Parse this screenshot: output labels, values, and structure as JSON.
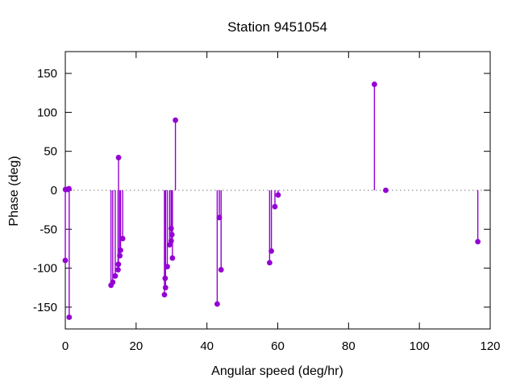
{
  "window": {
    "title": "Station 9451054"
  },
  "chart_data": {
    "type": "scatter",
    "subtype": "stem-impulses-with-points",
    "title": "Station 9451054",
    "xlabel": "Angular speed (deg/hr)",
    "ylabel": "Phase (deg)",
    "xlim": [
      0,
      120
    ],
    "ylim": [
      -178,
      178
    ],
    "xticks": [
      0,
      20,
      40,
      60,
      80,
      100,
      120
    ],
    "yticks": [
      -150,
      -100,
      -50,
      0,
      50,
      100,
      150
    ],
    "baseline": 0,
    "zero_line_visible": true,
    "grid": false,
    "legend": "none",
    "series_name": "phase",
    "series_color": "#9400d3",
    "axis_color": "#000000",
    "zero_line_color": "#777777",
    "background_color": "#ffffff",
    "points": [
      [
        0.04,
        1
      ],
      [
        0.54,
        1
      ],
      [
        1.02,
        2
      ],
      [
        0.0,
        -90
      ],
      [
        1.1,
        -163
      ],
      [
        12.9,
        -122
      ],
      [
        13.4,
        -118
      ],
      [
        14.1,
        -110
      ],
      [
        14.9,
        -102
      ],
      [
        15.0,
        -95
      ],
      [
        15.4,
        -84
      ],
      [
        15.6,
        -77
      ],
      [
        16.2,
        -62
      ],
      [
        15.04,
        42
      ],
      [
        28.0,
        -134
      ],
      [
        28.3,
        -125
      ],
      [
        28.2,
        -113
      ],
      [
        28.8,
        -98
      ],
      [
        29.45,
        -70
      ],
      [
        29.9,
        -65
      ],
      [
        29.9,
        -49
      ],
      [
        30.1,
        -57
      ],
      [
        30.25,
        -87
      ],
      [
        31.1,
        90
      ],
      [
        42.9,
        -146
      ],
      [
        43.5,
        -35
      ],
      [
        44.0,
        -102
      ],
      [
        57.7,
        -93
      ],
      [
        58.2,
        -78
      ],
      [
        59.2,
        -21
      ],
      [
        60.1,
        -6
      ],
      [
        87.3,
        136
      ],
      [
        90.5,
        0
      ],
      [
        116.5,
        -66
      ]
    ]
  }
}
